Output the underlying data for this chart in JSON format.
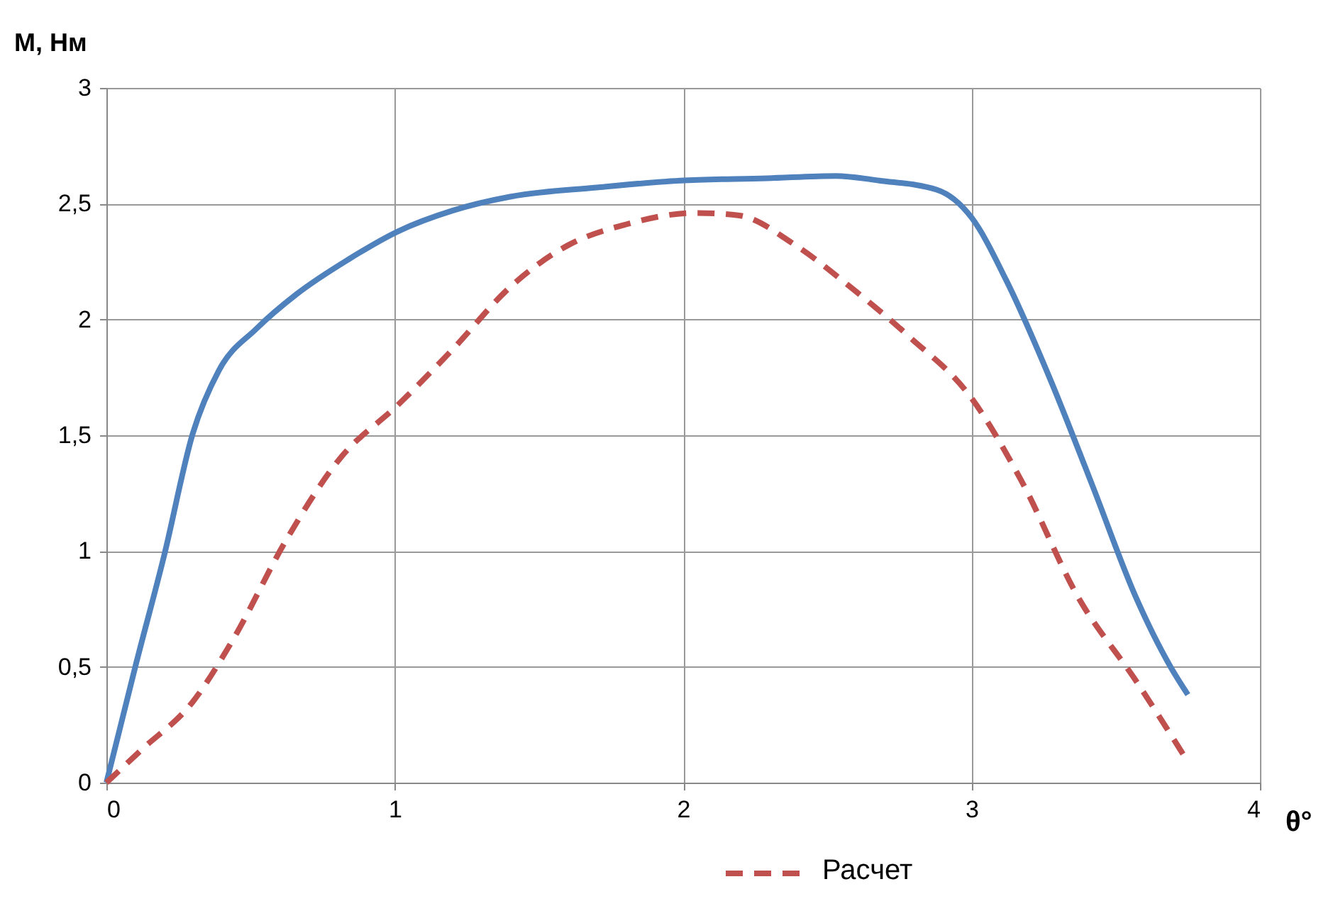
{
  "chart_data": {
    "type": "line",
    "xlabel": "θ°",
    "ylabel": "M, Нм",
    "xlim": [
      0,
      4
    ],
    "ylim": [
      0,
      3
    ],
    "xticks": [
      0,
      1,
      2,
      3,
      4
    ],
    "yticks": [
      0,
      {
        "value": 0.5,
        "label": "0,5"
      },
      1,
      {
        "value": 1.5,
        "label": "1,5"
      },
      2,
      {
        "value": 2.5,
        "label": "2,5"
      },
      3
    ],
    "grid": true,
    "legend": "bottom",
    "marker": "none",
    "series": [
      {
        "color": "#4f81bd",
        "line_style": "solid",
        "x": [
          0,
          0.1,
          0.2,
          0.3,
          0.39,
          0.52,
          0.66,
          0.84,
          1.01,
          1.2,
          1.4,
          1.7,
          1.99,
          2.29,
          2.53,
          2.68,
          2.88,
          3.0,
          3.12,
          3.27,
          3.42,
          3.57,
          3.69,
          3.75
        ],
        "values": [
          0,
          0.5,
          0.98,
          1.51,
          1.78,
          1.96,
          2.11,
          2.26,
          2.38,
          2.47,
          2.53,
          2.57,
          2.6,
          2.61,
          2.62,
          2.6,
          2.56,
          2.44,
          2.17,
          1.75,
          1.28,
          0.8,
          0.5,
          0.38
        ]
      },
      {
        "name": "Расчет",
        "color": "#c0504d",
        "line_style": "dashed",
        "x": [
          0,
          0.12,
          0.3,
          0.44,
          0.62,
          0.81,
          1.01,
          1.2,
          1.4,
          1.6,
          1.8,
          2.04,
          2.19,
          2.39,
          2.58,
          2.78,
          3.0,
          3.17,
          3.37,
          3.57,
          3.74
        ],
        "values": [
          0,
          0.14,
          0.35,
          0.62,
          1.04,
          1.4,
          1.63,
          1.87,
          2.14,
          2.32,
          2.41,
          2.46,
          2.45,
          2.32,
          2.14,
          1.93,
          1.66,
          1.31,
          0.8,
          0.44,
          0.11
        ]
      }
    ]
  }
}
